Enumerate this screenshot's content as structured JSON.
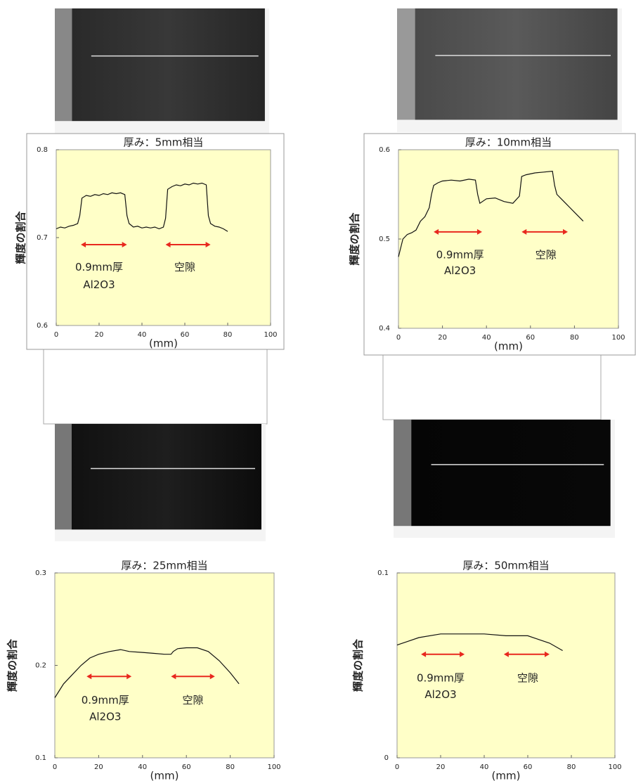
{
  "chart_data": [
    {
      "type": "line",
      "title": "厚み：5mm相当",
      "xlabel": "(mm)",
      "ylabel": "輝度の割合",
      "color": "#111111",
      "x": [
        0,
        2,
        4,
        6,
        8,
        10,
        11,
        12,
        14,
        16,
        18,
        20,
        22,
        24,
        26,
        28,
        30,
        32,
        33,
        34,
        36,
        38,
        40,
        42,
        44,
        46,
        48,
        50,
        51,
        52,
        54,
        56,
        58,
        60,
        62,
        64,
        66,
        68,
        70,
        71,
        72,
        74,
        76,
        78,
        80
      ],
      "values": [
        0.71,
        0.712,
        0.711,
        0.713,
        0.714,
        0.716,
        0.725,
        0.745,
        0.748,
        0.747,
        0.749,
        0.748,
        0.75,
        0.749,
        0.751,
        0.75,
        0.751,
        0.749,
        0.725,
        0.716,
        0.712,
        0.713,
        0.711,
        0.712,
        0.711,
        0.712,
        0.71,
        0.712,
        0.722,
        0.755,
        0.758,
        0.76,
        0.759,
        0.761,
        0.76,
        0.762,
        0.761,
        0.762,
        0.76,
        0.725,
        0.716,
        0.713,
        0.712,
        0.71,
        0.707
      ],
      "xlim": [
        0,
        100
      ],
      "xticks": [
        0,
        20,
        40,
        60,
        80,
        100
      ],
      "ylim": [
        0.6,
        0.8
      ],
      "yticks": [
        0.6,
        0.7,
        0.8
      ],
      "annotations": [
        "0.9mm厚",
        "Al2O3",
        "空隙"
      ]
    },
    {
      "type": "line",
      "title": "厚み：10mm相当",
      "xlabel": "(mm)",
      "ylabel": "輝度の割合",
      "color": "#111111",
      "x": [
        0,
        2,
        4,
        6,
        8,
        10,
        12,
        14,
        15,
        16,
        18,
        20,
        24,
        28,
        32,
        35,
        36,
        37,
        40,
        44,
        48,
        52,
        55,
        56,
        58,
        62,
        66,
        70,
        71,
        72,
        74,
        76,
        78,
        80,
        82,
        84
      ],
      "values": [
        0.48,
        0.5,
        0.505,
        0.507,
        0.51,
        0.52,
        0.525,
        0.535,
        0.55,
        0.56,
        0.563,
        0.565,
        0.566,
        0.565,
        0.567,
        0.566,
        0.55,
        0.54,
        0.545,
        0.546,
        0.542,
        0.54,
        0.548,
        0.57,
        0.572,
        0.574,
        0.575,
        0.576,
        0.56,
        0.55,
        0.545,
        0.54,
        0.535,
        0.53,
        0.525,
        0.52
      ],
      "xlim": [
        0,
        100
      ],
      "xticks": [
        0,
        20,
        40,
        60,
        80,
        100
      ],
      "ylim": [
        0.4,
        0.6
      ],
      "yticks": [
        0.4,
        0.5,
        0.6
      ],
      "annotations": [
        "0.9mm厚",
        "Al2O3",
        "空隙"
      ]
    },
    {
      "type": "line",
      "title": "厚み：25mm相当",
      "xlabel": "(mm)",
      "ylabel": "輝度の割合",
      "color": "#111111",
      "x": [
        0,
        4,
        8,
        12,
        16,
        20,
        25,
        30,
        34,
        40,
        45,
        50,
        53,
        54,
        56,
        60,
        65,
        70,
        75,
        80,
        84
      ],
      "values": [
        0.165,
        0.18,
        0.19,
        0.2,
        0.208,
        0.212,
        0.215,
        0.217,
        0.215,
        0.214,
        0.213,
        0.212,
        0.212,
        0.215,
        0.218,
        0.219,
        0.219,
        0.215,
        0.205,
        0.192,
        0.18
      ],
      "xlim": [
        0,
        100
      ],
      "xticks": [
        0,
        20,
        40,
        60,
        80,
        100
      ],
      "ylim": [
        0.1,
        0.3
      ],
      "yticks": [
        0.1,
        0.2,
        0.3
      ],
      "annotations": [
        "0.9mm厚",
        "Al2O3",
        "空隙"
      ]
    },
    {
      "type": "line",
      "title": "厚み：50mm相当",
      "xlabel": "(mm)",
      "ylabel": "輝度の割合",
      "color": "#111111",
      "x": [
        0,
        5,
        10,
        20,
        30,
        40,
        50,
        60,
        65,
        70,
        76
      ],
      "values": [
        0.061,
        0.063,
        0.065,
        0.067,
        0.067,
        0.067,
        0.066,
        0.066,
        0.064,
        0.062,
        0.058
      ],
      "xlim": [
        0,
        100
      ],
      "xticks": [
        0,
        20,
        40,
        60,
        80,
        100
      ],
      "ylim": [
        0,
        0.1
      ],
      "yticks": [
        0,
        0.1
      ],
      "annotations": [
        "0.9mm厚",
        "Al2O3",
        "空隙"
      ]
    }
  ]
}
